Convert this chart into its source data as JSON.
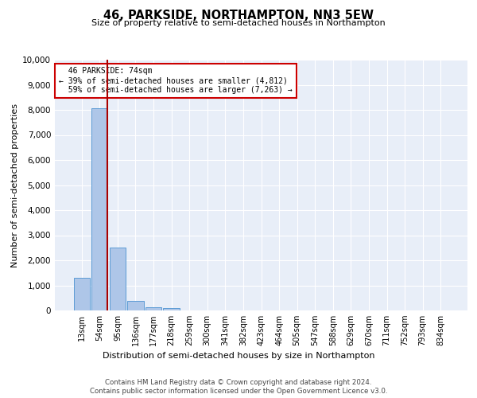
{
  "title": "46, PARKSIDE, NORTHAMPTON, NN3 5EW",
  "subtitle": "Size of property relative to semi-detached houses in Northampton",
  "xlabel_bottom": "Distribution of semi-detached houses by size in Northampton",
  "ylabel": "Number of semi-detached properties",
  "property_size": 74,
  "property_label": "46 PARKSIDE: 74sqm",
  "pct_smaller": 39,
  "pct_larger": 59,
  "count_smaller": 4812,
  "count_larger": 7263,
  "bar_categories": [
    "13sqm",
    "54sqm",
    "95sqm",
    "136sqm",
    "177sqm",
    "218sqm",
    "259sqm",
    "300sqm",
    "341sqm",
    "382sqm",
    "423sqm",
    "464sqm",
    "505sqm",
    "547sqm",
    "588sqm",
    "629sqm",
    "670sqm",
    "711sqm",
    "752sqm",
    "793sqm",
    "834sqm"
  ],
  "bar_values": [
    1300,
    8050,
    2500,
    375,
    130,
    80,
    0,
    0,
    0,
    0,
    0,
    0,
    0,
    0,
    0,
    0,
    0,
    0,
    0,
    0,
    0
  ],
  "bar_color": "#aec6e8",
  "bar_edge_color": "#5b9bd5",
  "vline_color": "#aa0000",
  "annotation_box_edge": "#cc0000",
  "ylim": [
    0,
    10000
  ],
  "yticks": [
    0,
    1000,
    2000,
    3000,
    4000,
    5000,
    6000,
    7000,
    8000,
    9000,
    10000
  ],
  "bg_color": "#e8eef8",
  "grid_color": "#ffffff",
  "footer1": "Contains HM Land Registry data © Crown copyright and database right 2024.",
  "footer2": "Contains public sector information licensed under the Open Government Licence v3.0."
}
